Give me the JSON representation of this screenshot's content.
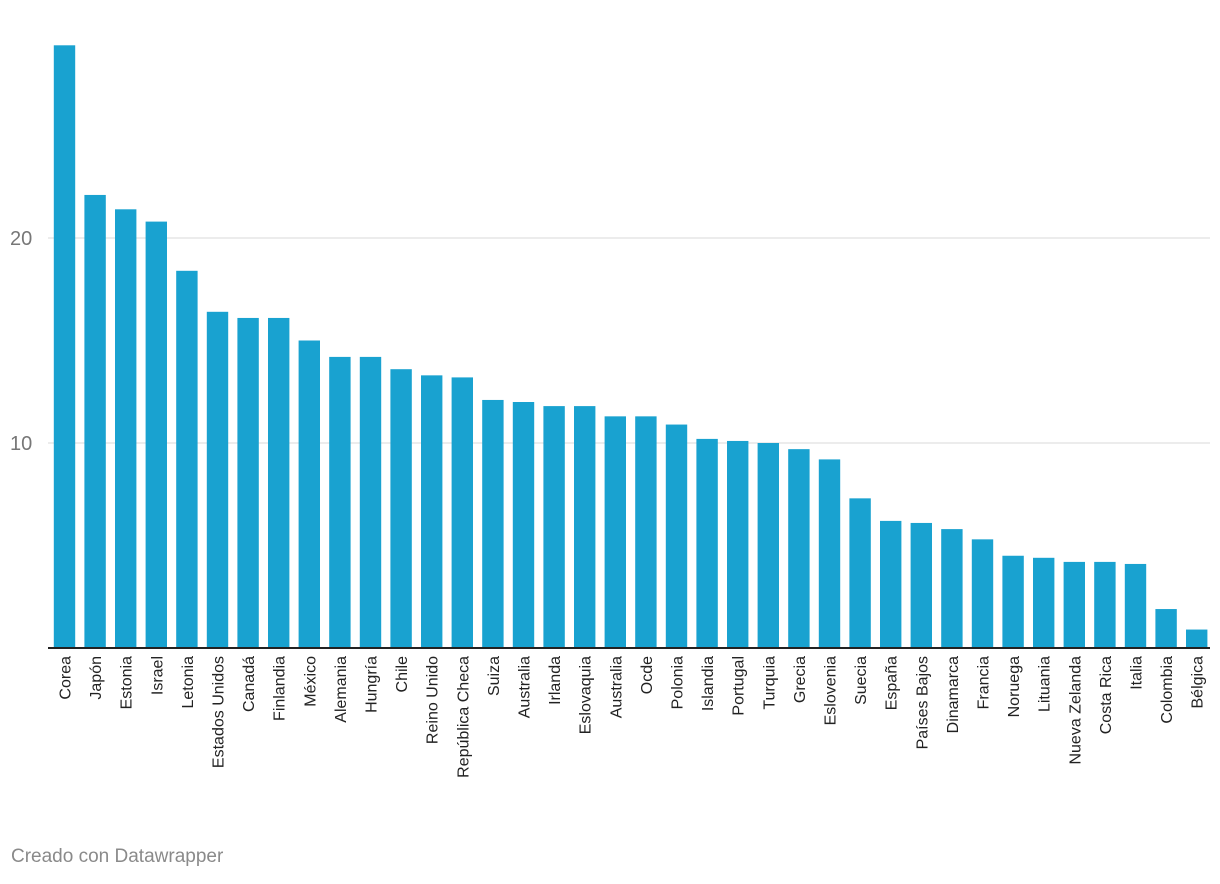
{
  "chart_data": {
    "type": "bar",
    "title": "",
    "xlabel": "",
    "ylabel": "",
    "ylim": [
      0,
      29.5
    ],
    "yticks": [
      10,
      20
    ],
    "grid": true,
    "bar_color": "#19a2d0",
    "categories": [
      "Corea",
      "Japón",
      "Estonia",
      "Israel",
      "Letonia",
      "Estados Unidos",
      "Canadá",
      "Finlandia",
      "México",
      "Alemania",
      "Hungría",
      "Chile",
      "Reino Unido",
      "República Checa",
      "Suiza",
      "Australia",
      "Irlanda",
      "Eslovaquia",
      "Australia",
      "Ocde",
      "Polonia",
      "Islandia",
      "Portugal",
      "Turquia",
      "Grecia",
      "Eslovenia",
      "Suecia",
      "España",
      "Países Bajos",
      "Dinamarca",
      "Francia",
      "Noruega",
      "Lituania",
      "Nueva Zelanda",
      "Costa Rica",
      "Italia",
      "Colombia",
      "Bélgica"
    ],
    "values": [
      29.4,
      22.1,
      21.4,
      20.8,
      18.4,
      16.4,
      16.1,
      16.1,
      15.0,
      14.2,
      14.2,
      13.6,
      13.3,
      13.2,
      12.1,
      12.0,
      11.8,
      11.8,
      11.3,
      11.3,
      10.9,
      10.2,
      10.1,
      10.0,
      9.7,
      9.2,
      7.3,
      6.2,
      6.1,
      5.8,
      5.3,
      4.5,
      4.4,
      4.2,
      4.2,
      4.1,
      1.9,
      0.9
    ]
  },
  "footer": {
    "credit": "Creado con Datawrapper"
  }
}
